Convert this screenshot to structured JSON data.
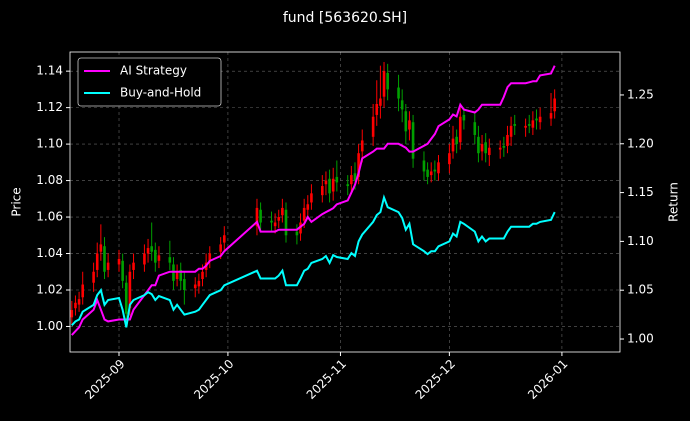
{
  "chart_data": {
    "type": "candlestick",
    "title": "fund [563620.SH]",
    "ylabel": "Price",
    "y2label": "Return",
    "up_color": "#ff0000",
    "down_color": "#00a000",
    "grid": true,
    "legend": "upper left",
    "x": [
      1,
      2,
      3,
      4,
      7,
      8,
      9,
      10,
      11,
      14,
      15,
      16,
      17,
      18,
      21,
      22,
      23,
      24,
      25,
      28,
      29,
      30,
      31,
      32,
      35,
      36,
      37,
      38,
      39,
      42,
      43,
      52,
      53,
      56,
      57,
      58,
      59,
      60,
      63,
      64,
      65,
      66,
      67,
      70,
      71,
      72,
      73,
      74,
      77,
      78,
      79,
      80,
      81,
      84,
      85,
      86,
      87,
      88,
      91,
      92,
      93,
      94,
      95,
      98,
      99,
      100,
      101,
      102,
      105,
      106,
      107,
      108,
      109,
      112,
      113,
      114,
      115,
      116,
      119,
      120,
      121,
      122,
      123,
      126,
      127,
      128,
      129,
      130,
      133,
      134
    ],
    "open": [
      1.005,
      1.01,
      1.012,
      1.016,
      1.024,
      1.031,
      1.041,
      1.044,
      1.031,
      1.034,
      1.036,
      1.024,
      1.01,
      1.031,
      1.034,
      1.04,
      1.044,
      1.042,
      1.036,
      1.038,
      1.034,
      1.026,
      1.031,
      1.026,
      1.021,
      1.022,
      1.026,
      1.031,
      1.036,
      1.041,
      1.046,
      1.055,
      1.064,
      1.058,
      1.055,
      1.058,
      1.061,
      1.064,
      1.052,
      1.051,
      1.058,
      1.064,
      1.068,
      1.072,
      1.078,
      1.081,
      1.074,
      1.082,
      1.078,
      1.078,
      1.084,
      1.082,
      1.096,
      1.104,
      1.116,
      1.121,
      1.126,
      1.139,
      1.131,
      1.124,
      1.118,
      1.108,
      1.112,
      1.091,
      1.086,
      1.083,
      1.086,
      1.084,
      1.089,
      1.096,
      1.104,
      1.101,
      1.116,
      1.112,
      1.104,
      1.096,
      1.101,
      1.094,
      1.097,
      1.099,
      1.099,
      1.104,
      1.111,
      1.109,
      1.111,
      1.109,
      1.114,
      1.112,
      1.114,
      1.118
    ],
    "high": [
      1.014,
      1.017,
      1.019,
      1.03,
      1.035,
      1.046,
      1.056,
      1.049,
      1.04,
      1.042,
      1.04,
      1.028,
      1.034,
      1.04,
      1.045,
      1.048,
      1.057,
      1.046,
      1.044,
      1.047,
      1.038,
      1.034,
      1.035,
      1.03,
      1.027,
      1.029,
      1.034,
      1.04,
      1.044,
      1.049,
      1.055,
      1.07,
      1.068,
      1.063,
      1.062,
      1.064,
      1.07,
      1.068,
      1.056,
      1.062,
      1.07,
      1.072,
      1.078,
      1.083,
      1.085,
      1.086,
      1.087,
      1.091,
      1.083,
      1.088,
      1.09,
      1.1,
      1.108,
      1.122,
      1.135,
      1.143,
      1.145,
      1.144,
      1.138,
      1.13,
      1.122,
      1.118,
      1.116,
      1.096,
      1.09,
      1.09,
      1.091,
      1.094,
      1.1,
      1.11,
      1.108,
      1.12,
      1.12,
      1.117,
      1.11,
      1.105,
      1.106,
      1.103,
      1.102,
      1.104,
      1.11,
      1.115,
      1.116,
      1.114,
      1.116,
      1.118,
      1.119,
      1.12,
      1.128,
      1.13
    ],
    "low": [
      1.001,
      1.006,
      1.008,
      1.012,
      1.019,
      1.027,
      1.036,
      1.026,
      1.027,
      1.03,
      1.021,
      1.002,
      1.006,
      1.026,
      1.03,
      1.035,
      1.036,
      1.03,
      1.032,
      1.031,
      1.02,
      1.022,
      1.02,
      1.012,
      1.016,
      1.018,
      1.022,
      1.027,
      1.032,
      1.037,
      1.042,
      1.05,
      1.052,
      1.052,
      1.051,
      1.054,
      1.057,
      1.046,
      1.045,
      1.047,
      1.054,
      1.06,
      1.064,
      1.068,
      1.072,
      1.068,
      1.069,
      1.074,
      1.072,
      1.073,
      1.075,
      1.078,
      1.09,
      1.099,
      1.11,
      1.114,
      1.12,
      1.124,
      1.118,
      1.112,
      1.1,
      1.102,
      1.087,
      1.08,
      1.078,
      1.079,
      1.08,
      1.08,
      1.084,
      1.092,
      1.095,
      1.097,
      1.108,
      1.1,
      1.09,
      1.091,
      1.09,
      1.088,
      1.092,
      1.093,
      1.095,
      1.099,
      1.105,
      1.104,
      1.106,
      1.105,
      1.108,
      1.108,
      1.11,
      1.114
    ],
    "close": [
      1.009,
      1.013,
      1.015,
      1.023,
      1.03,
      1.04,
      1.045,
      1.03,
      1.035,
      1.037,
      1.025,
      1.007,
      1.03,
      1.035,
      1.04,
      1.043,
      1.041,
      1.035,
      1.039,
      1.035,
      1.025,
      1.03,
      1.025,
      1.02,
      1.023,
      1.025,
      1.03,
      1.035,
      1.04,
      1.045,
      1.05,
      1.065,
      1.057,
      1.057,
      1.057,
      1.06,
      1.065,
      1.05,
      1.05,
      1.057,
      1.065,
      1.067,
      1.073,
      1.077,
      1.08,
      1.073,
      1.081,
      1.079,
      1.077,
      1.083,
      1.08,
      1.095,
      1.102,
      1.115,
      1.122,
      1.125,
      1.14,
      1.13,
      1.125,
      1.119,
      1.107,
      1.113,
      1.092,
      1.085,
      1.082,
      1.085,
      1.085,
      1.09,
      1.095,
      1.103,
      1.1,
      1.115,
      1.113,
      1.105,
      1.095,
      1.1,
      1.095,
      1.098,
      1.098,
      1.098,
      1.105,
      1.11,
      1.11,
      1.11,
      1.11,
      1.113,
      1.113,
      1.115,
      1.117,
      1.125
    ],
    "series": [
      {
        "name": "AI Strategy",
        "color": "#ff00ff",
        "axis": "y2",
        "values": [
          1.004,
          1.008,
          1.012,
          1.02,
          1.03,
          1.04,
          1.03,
          1.02,
          1.018,
          1.02,
          1.02,
          1.02,
          1.02,
          1.03,
          1.045,
          1.05,
          1.055,
          1.055,
          1.065,
          1.069,
          1.069,
          1.069,
          1.069,
          1.069,
          1.069,
          1.072,
          1.072,
          1.075,
          1.08,
          1.085,
          1.09,
          1.12,
          1.11,
          1.11,
          1.11,
          1.112,
          1.112,
          1.112,
          1.112,
          1.115,
          1.118,
          1.125,
          1.12,
          1.128,
          1.13,
          1.132,
          1.134,
          1.138,
          1.142,
          1.15,
          1.158,
          1.17,
          1.185,
          1.192,
          1.195,
          1.195,
          1.195,
          1.2,
          1.2,
          1.198,
          1.196,
          1.192,
          1.192,
          1.198,
          1.2,
          1.205,
          1.21,
          1.218,
          1.225,
          1.23,
          1.228,
          1.24,
          1.235,
          1.232,
          1.235,
          1.24,
          1.24,
          1.24,
          1.24,
          1.248,
          1.258,
          1.262,
          1.262,
          1.262,
          1.263,
          1.264,
          1.264,
          1.27,
          1.272,
          1.28
        ]
      },
      {
        "name": "Buy-and-Hold",
        "color": "#00ffff",
        "axis": "y2",
        "values": [
          1.014,
          1.018,
          1.02,
          1.028,
          1.035,
          1.045,
          1.05,
          1.035,
          1.04,
          1.042,
          1.03,
          1.012,
          1.035,
          1.04,
          1.045,
          1.048,
          1.046,
          1.04,
          1.044,
          1.04,
          1.03,
          1.035,
          1.03,
          1.025,
          1.028,
          1.03,
          1.035,
          1.04,
          1.045,
          1.05,
          1.055,
          1.07,
          1.062,
          1.062,
          1.062,
          1.065,
          1.07,
          1.055,
          1.055,
          1.062,
          1.07,
          1.072,
          1.078,
          1.082,
          1.085,
          1.078,
          1.086,
          1.084,
          1.082,
          1.088,
          1.085,
          1.1,
          1.107,
          1.12,
          1.127,
          1.13,
          1.145,
          1.135,
          1.13,
          1.124,
          1.112,
          1.118,
          1.097,
          1.09,
          1.087,
          1.09,
          1.09,
          1.095,
          1.1,
          1.108,
          1.105,
          1.12,
          1.118,
          1.11,
          1.1,
          1.105,
          1.1,
          1.103,
          1.103,
          1.103,
          1.11,
          1.115,
          1.115,
          1.115,
          1.115,
          1.118,
          1.118,
          1.12,
          1.122,
          1.13
        ]
      }
    ],
    "xlim": [
      0.5,
      152
    ],
    "xticks": [
      {
        "value": 14,
        "label": "2025-09"
      },
      {
        "value": 44,
        "label": "2025-10"
      },
      {
        "value": 75,
        "label": "2025-11"
      },
      {
        "value": 105,
        "label": "2025-12"
      },
      {
        "value": 136,
        "label": "2026-01"
      }
    ],
    "ylim": [
      0.986,
      1.1505
    ],
    "yticks": [
      {
        "value": 1.0,
        "label": "1.00"
      },
      1.02,
      1.04,
      1.06,
      1.08,
      {
        "value": 1.1,
        "label": "1.10"
      },
      1.12,
      1.14
    ],
    "y2lim": [
      0.9867,
      1.294
    ],
    "y2ticks": [
      {
        "value": 1.0,
        "label": "1.00"
      },
      1.05,
      {
        "value": 1.1,
        "label": "1.10"
      },
      1.15,
      {
        "value": 1.2,
        "label": "1.20"
      },
      1.25
    ]
  }
}
